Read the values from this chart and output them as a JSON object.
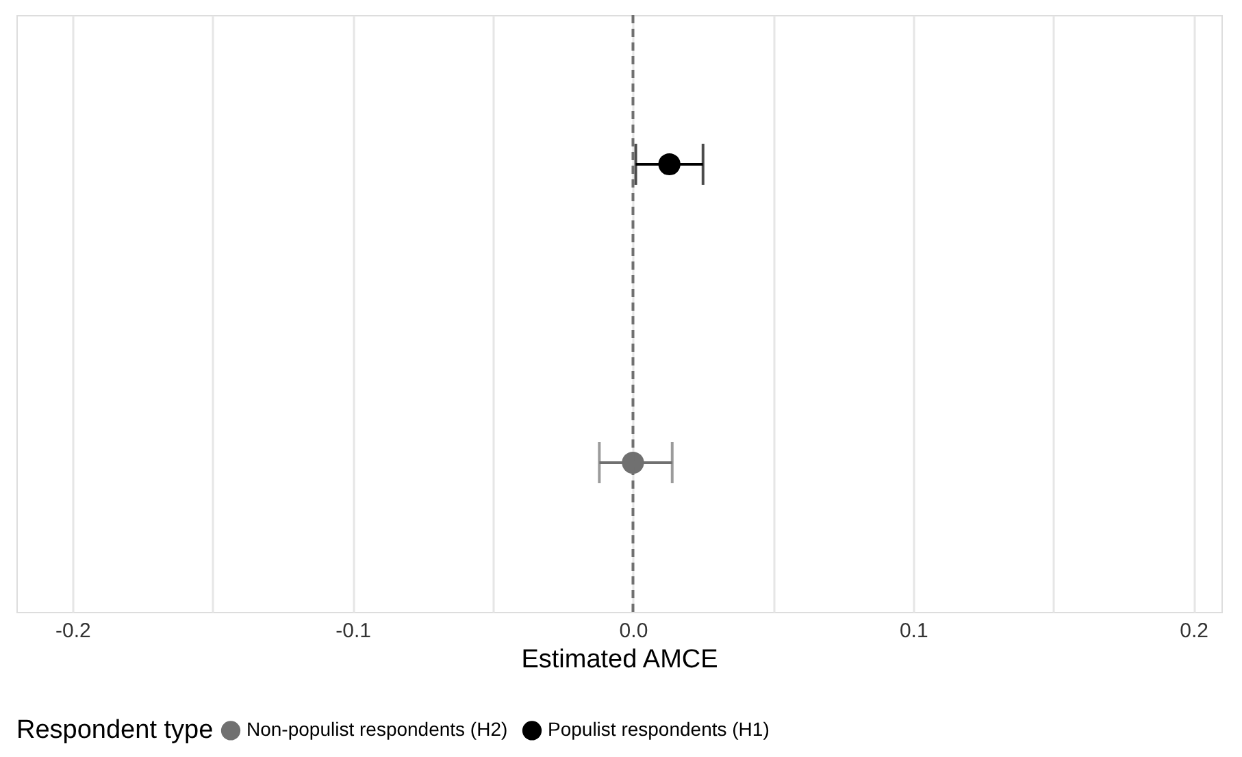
{
  "chart_data": {
    "type": "scatter",
    "orientation": "horizontal",
    "xlabel": "Estimated AMCE",
    "legend_title": "Respondent type",
    "legend": "bottom",
    "grid": "x",
    "marker": "circle",
    "categories": [
      null,
      null
    ],
    "xlim": [
      -0.22,
      0.21
    ],
    "xticks": [
      -0.2,
      {
        "value": -0.15,
        "label": null
      },
      -0.1,
      {
        "value": -0.05,
        "label": null
      },
      {
        "value": 0.0,
        "label": "0.0"
      },
      {
        "value": 0.05,
        "label": null
      },
      0.1,
      {
        "value": 0.15,
        "label": null
      },
      0.2
    ],
    "series": [
      {
        "name": "Non-populist respondents (H2)",
        "color": "#707070",
        "values": [
          null,
          0.0
        ],
        "errors": [
          null,
          [
            -0.012,
            0.014
          ]
        ]
      },
      {
        "name": "Populist respondents (H1)",
        "color": "#000000",
        "values": [
          0.013,
          null
        ],
        "errors": [
          0.012,
          null
        ]
      }
    ],
    "ref_lines": [
      {
        "axis": "x",
        "value": 0.0,
        "color": "#707070",
        "line_style": "dashed"
      }
    ]
  }
}
